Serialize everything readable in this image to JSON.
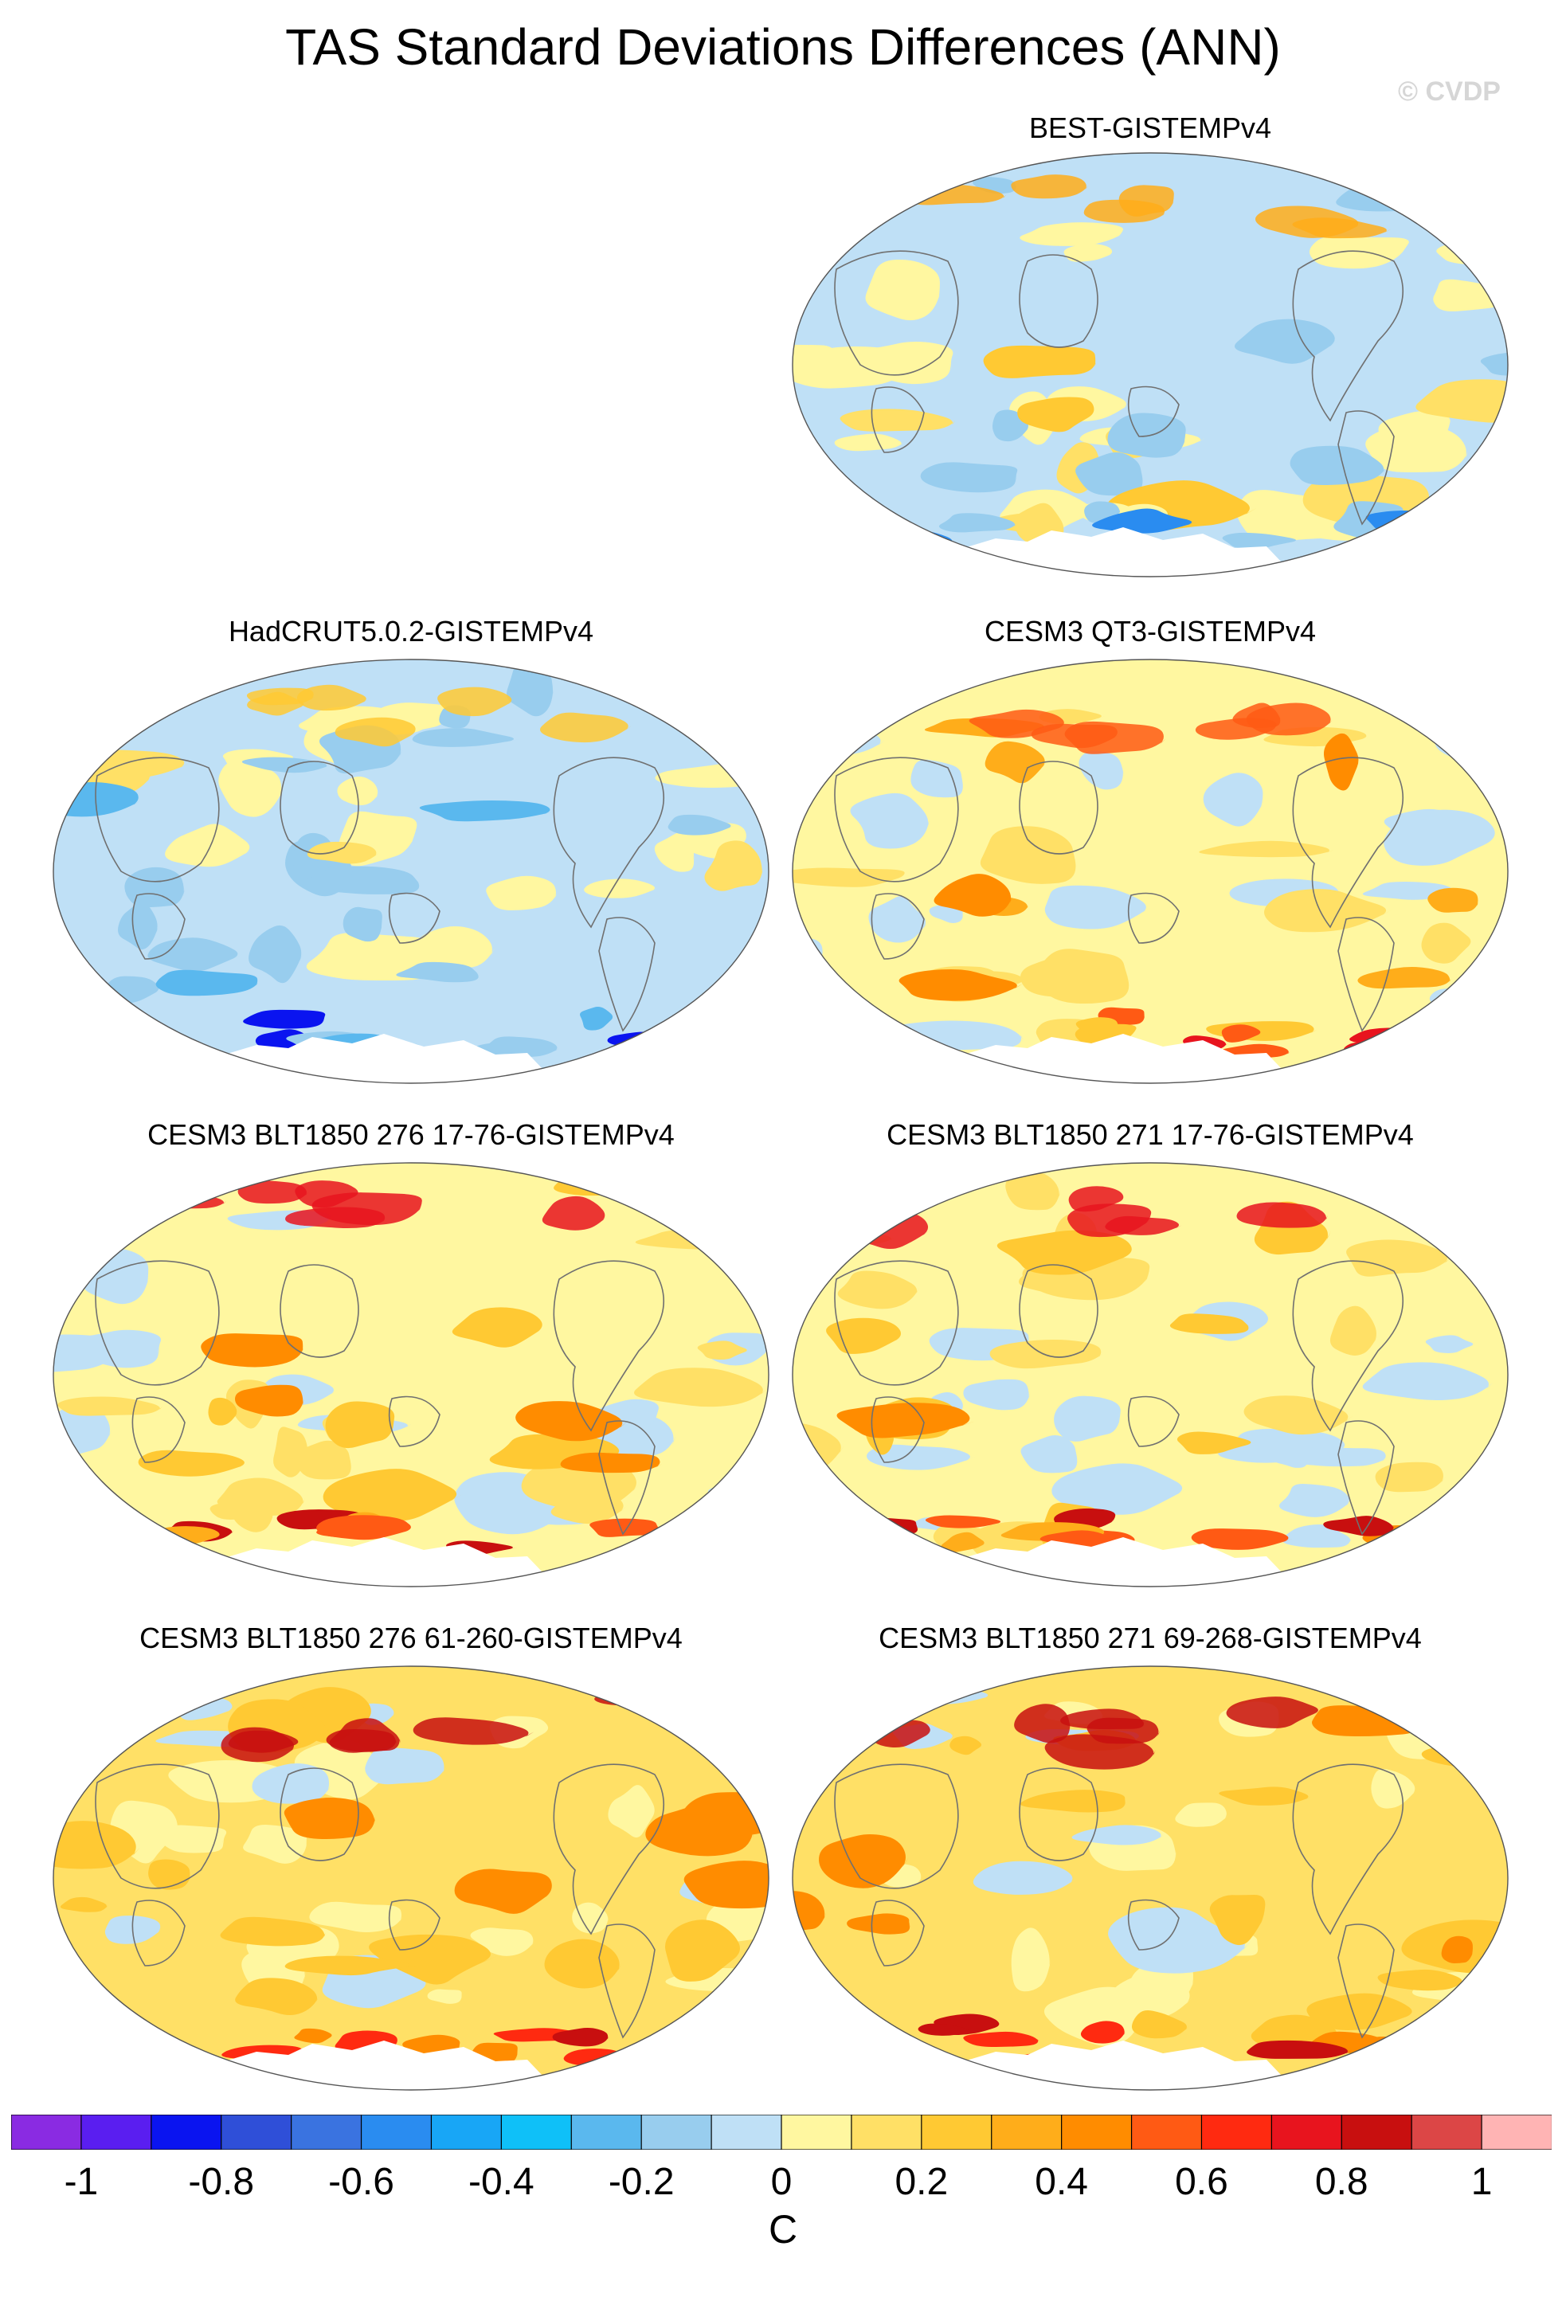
{
  "figure": {
    "title": "TAS Standard Deviations Differences (ANN)",
    "watermark": "© CVDP",
    "units": "C"
  },
  "panels": [
    {
      "title": "BEST-GISTEMPv4",
      "tone": "cool"
    },
    {
      "title": "HadCRUT5.0.2-GISTEMPv4",
      "tone": "cooler"
    },
    {
      "title": "CESM3 QT3-GISTEMPv4",
      "tone": "warm"
    },
    {
      "title": "CESM3 BLT1850 276 17-76-GISTEMPv4",
      "tone": "warmer"
    },
    {
      "title": "CESM3 BLT1850 271 17-76-GISTEMPv4",
      "tone": "warmer"
    },
    {
      "title": "CESM3 BLT1850 276 61-260-GISTEMPv4",
      "tone": "hot"
    },
    {
      "title": "CESM3 BLT1850 271 69-268-GISTEMPv4",
      "tone": "hot"
    }
  ],
  "colorbar": {
    "colors": [
      "#8a2be2",
      "#5a1ef0",
      "#0a14f0",
      "#2f4fd8",
      "#3a73e0",
      "#2a8cf0",
      "#18a6f6",
      "#0fc0f8",
      "#5ab8ee",
      "#98cdee",
      "#bfe0f6",
      "#fff7a0",
      "#ffe066",
      "#ffc933",
      "#ffad1a",
      "#ff8c00",
      "#ff5a14",
      "#ff2a10",
      "#e8141e",
      "#c80f0f",
      "#dc4646",
      "#ffb4b4"
    ],
    "tick_labels": [
      "-1",
      "-0.8",
      "-0.6",
      "-0.4",
      "-0.2",
      "0",
      "0.2",
      "0.4",
      "0.6",
      "0.8",
      "1"
    ]
  },
  "chart_data": {
    "type": "heatmap",
    "title": "TAS Standard Deviations Differences (ANN)",
    "colorbar_label": "C",
    "colorbar_range": [
      -1.1,
      1.1
    ],
    "colorbar_ticks": [
      -1,
      -0.8,
      -0.6,
      -0.4,
      -0.2,
      0,
      0.2,
      0.4,
      0.6,
      0.8,
      1
    ],
    "panels": [
      "BEST-GISTEMPv4",
      "HadCRUT5.0.2-GISTEMPv4",
      "CESM3 QT3-GISTEMPv4",
      "CESM3 BLT1850 276 17-76-GISTEMPv4",
      "CESM3 BLT1850 271 17-76-GISTEMPv4",
      "CESM3 BLT1850 276 61-260-GISTEMPv4",
      "CESM3 BLT1850 271 69-268-GISTEMPv4"
    ]
  }
}
